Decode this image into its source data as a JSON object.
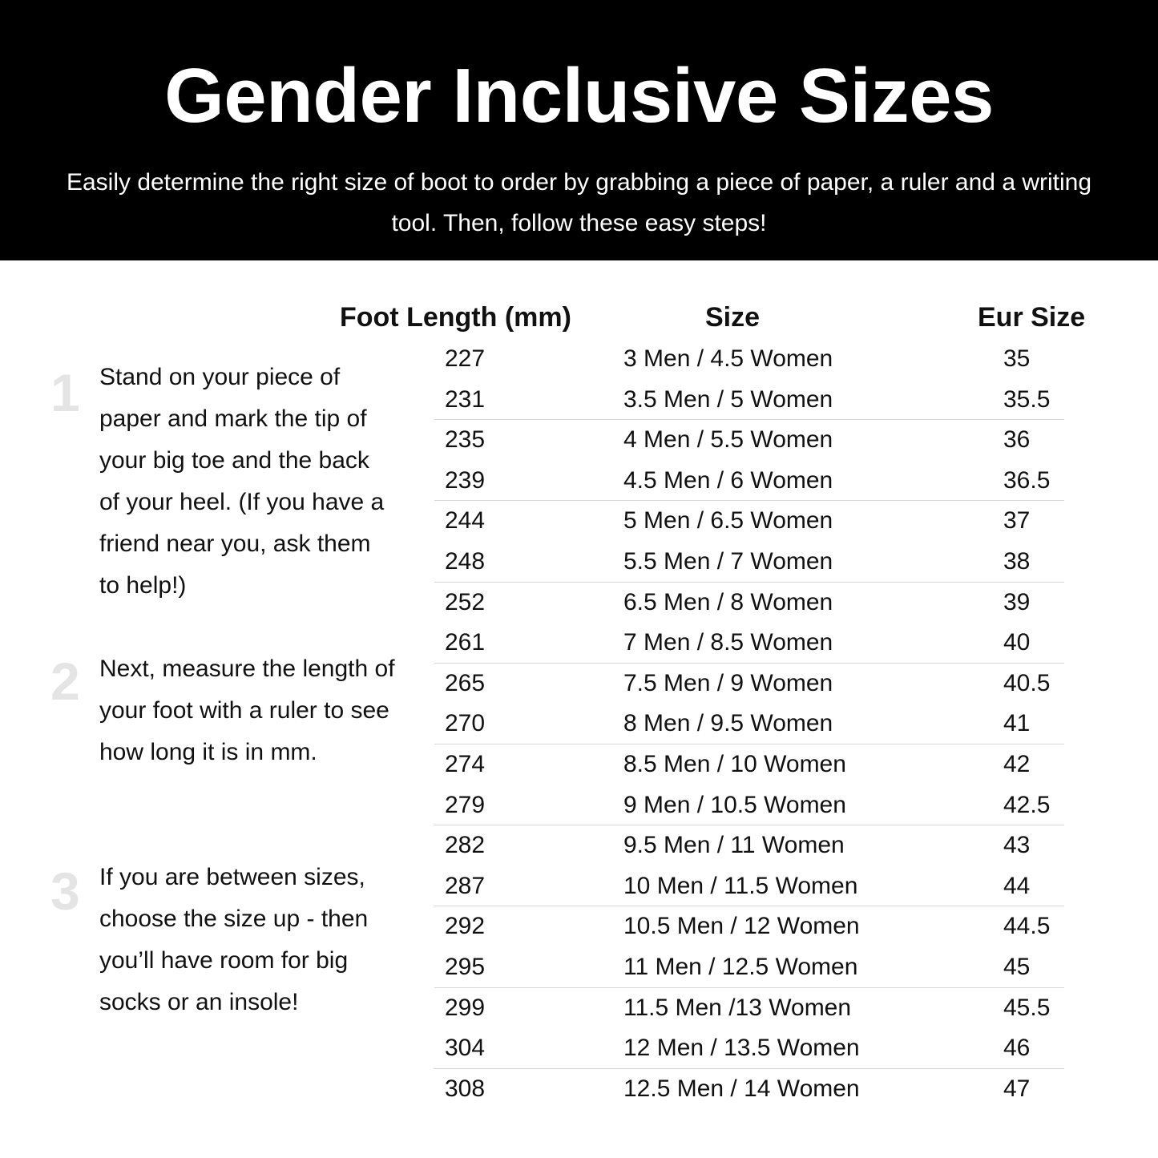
{
  "header": {
    "title": "Gender Inclusive Sizes",
    "subtitle": "Easily determine the right size of boot to order by grabbing a piece of paper, a ruler and a writing tool. Then, follow these easy steps!"
  },
  "columns": {
    "foot_length": "Foot Length (mm)",
    "size": "Size",
    "eur_size": "Eur Size"
  },
  "steps": [
    {
      "number": "1",
      "text": "Stand on your piece of paper and mark the tip of your big toe and the back of your heel. (If you have a friend near you, ask them to help!)"
    },
    {
      "number": "2",
      "text": "Next, measure the length of your foot with a ruler to see how long it is in mm."
    },
    {
      "number": "3",
      "text": "If you are between sizes, choose the size up - then you’ll have room for big socks or an insole!"
    }
  ],
  "rows": [
    [
      "227",
      "3 Men / 4.5 Women",
      "35"
    ],
    [
      "231",
      "3.5 Men / 5 Women",
      "35.5"
    ],
    [
      "235",
      "4 Men / 5.5 Women",
      "36"
    ],
    [
      "239",
      "4.5 Men / 6 Women",
      "36.5"
    ],
    [
      "244",
      "5 Men / 6.5 Women",
      "37"
    ],
    [
      "248",
      "5.5 Men / 7 Women",
      "38"
    ],
    [
      "252",
      "6.5 Men / 8 Women",
      "39"
    ],
    [
      "261",
      "7 Men / 8.5 Women",
      "40"
    ],
    [
      "265",
      "7.5 Men / 9 Women",
      "40.5"
    ],
    [
      "270",
      "8 Men / 9.5 Women",
      "41"
    ],
    [
      "274",
      "8.5 Men / 10 Women",
      "42"
    ],
    [
      "279",
      "9 Men / 10.5 Women",
      "42.5"
    ],
    [
      "282",
      "9.5 Men / 11 Women",
      "43"
    ],
    [
      "287",
      "10 Men / 11.5 Women",
      "44"
    ],
    [
      "292",
      "10.5 Men / 12 Women",
      "44.5"
    ],
    [
      "295",
      "11 Men / 12.5 Women",
      "45"
    ],
    [
      "299",
      "11.5 Men /13 Women",
      "45.5"
    ],
    [
      "304",
      "12 Men / 13.5 Women",
      "46"
    ],
    [
      "308",
      "12.5 Men / 14 Women",
      "47"
    ]
  ]
}
